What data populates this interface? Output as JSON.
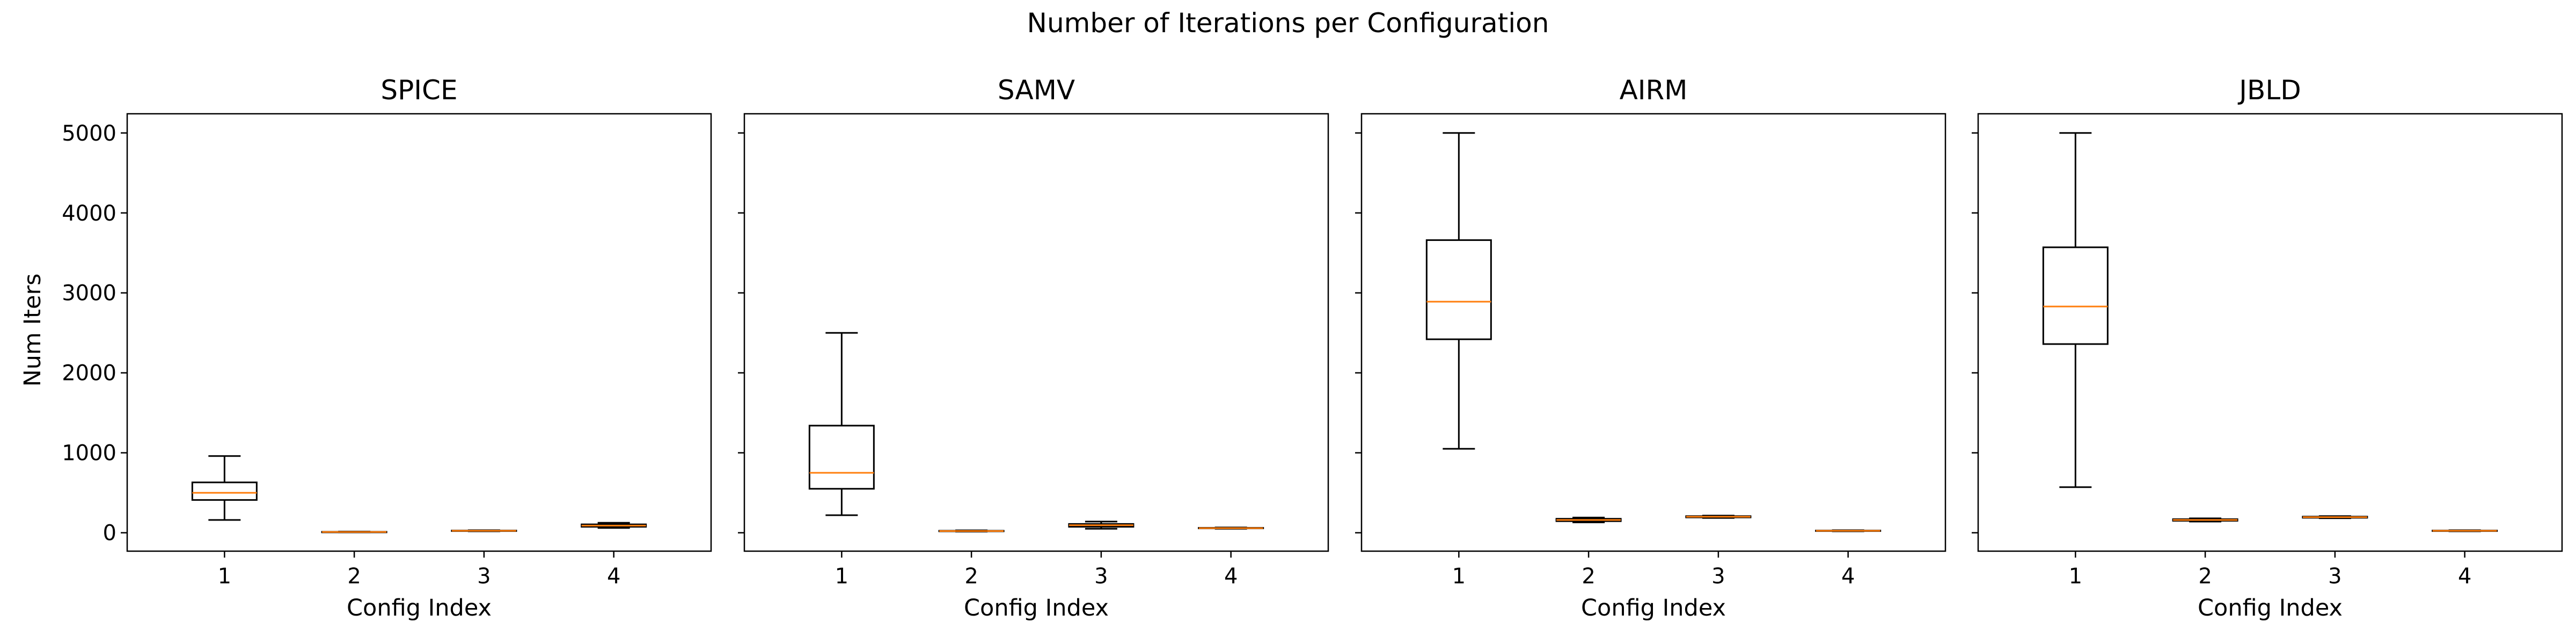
{
  "chart_data": {
    "type": "box",
    "title": "Number of Iterations per Configuration",
    "xlabel": "Config Index",
    "ylabel": "Num Iters",
    "ylim": [
      -230,
      5240
    ],
    "yticks": [
      0,
      1000,
      2000,
      3000,
      4000,
      5000
    ],
    "categories": [
      "1",
      "2",
      "3",
      "4"
    ],
    "shared_y": true,
    "grid": false,
    "colors": {
      "box": "#000000",
      "median": "#ff7f0e"
    },
    "panels": [
      {
        "title": "SPICE",
        "boxes": [
          {
            "category": "1",
            "whislo": 160,
            "q1": 410,
            "med": 500,
            "q3": 630,
            "whishi": 960
          },
          {
            "category": "2",
            "whislo": 5,
            "q1": 8,
            "med": 10,
            "q3": 12,
            "whishi": 15
          },
          {
            "category": "3",
            "whislo": 18,
            "q1": 22,
            "med": 25,
            "q3": 28,
            "whishi": 32
          },
          {
            "category": "4",
            "whislo": 60,
            "q1": 75,
            "med": 90,
            "q3": 105,
            "whishi": 125
          }
        ]
      },
      {
        "title": "SAMV",
        "boxes": [
          {
            "category": "1",
            "whislo": 220,
            "q1": 550,
            "med": 750,
            "q3": 1340,
            "whishi": 2500
          },
          {
            "category": "2",
            "whislo": 15,
            "q1": 20,
            "med": 22,
            "q3": 25,
            "whishi": 30
          },
          {
            "category": "3",
            "whislo": 50,
            "q1": 75,
            "med": 95,
            "q3": 110,
            "whishi": 140
          },
          {
            "category": "4",
            "whislo": 50,
            "q1": 55,
            "med": 58,
            "q3": 62,
            "whishi": 66
          }
        ]
      },
      {
        "title": "AIRM",
        "boxes": [
          {
            "category": "1",
            "whislo": 1050,
            "q1": 2420,
            "med": 2890,
            "q3": 3660,
            "whishi": 5000
          },
          {
            "category": "2",
            "whislo": 130,
            "q1": 145,
            "med": 160,
            "q3": 175,
            "whishi": 190
          },
          {
            "category": "3",
            "whislo": 185,
            "q1": 192,
            "med": 200,
            "q3": 208,
            "whishi": 215
          },
          {
            "category": "4",
            "whislo": 18,
            "q1": 22,
            "med": 25,
            "q3": 28,
            "whishi": 32
          }
        ]
      },
      {
        "title": "JBLD",
        "boxes": [
          {
            "category": "1",
            "whislo": 570,
            "q1": 2360,
            "med": 2830,
            "q3": 3570,
            "whishi": 5000
          },
          {
            "category": "2",
            "whislo": 140,
            "q1": 150,
            "med": 160,
            "q3": 170,
            "whishi": 180
          },
          {
            "category": "3",
            "whislo": 182,
            "q1": 188,
            "med": 195,
            "q3": 202,
            "whishi": 208
          },
          {
            "category": "4",
            "whislo": 18,
            "q1": 22,
            "med": 25,
            "q3": 28,
            "whishi": 32
          }
        ]
      }
    ]
  }
}
